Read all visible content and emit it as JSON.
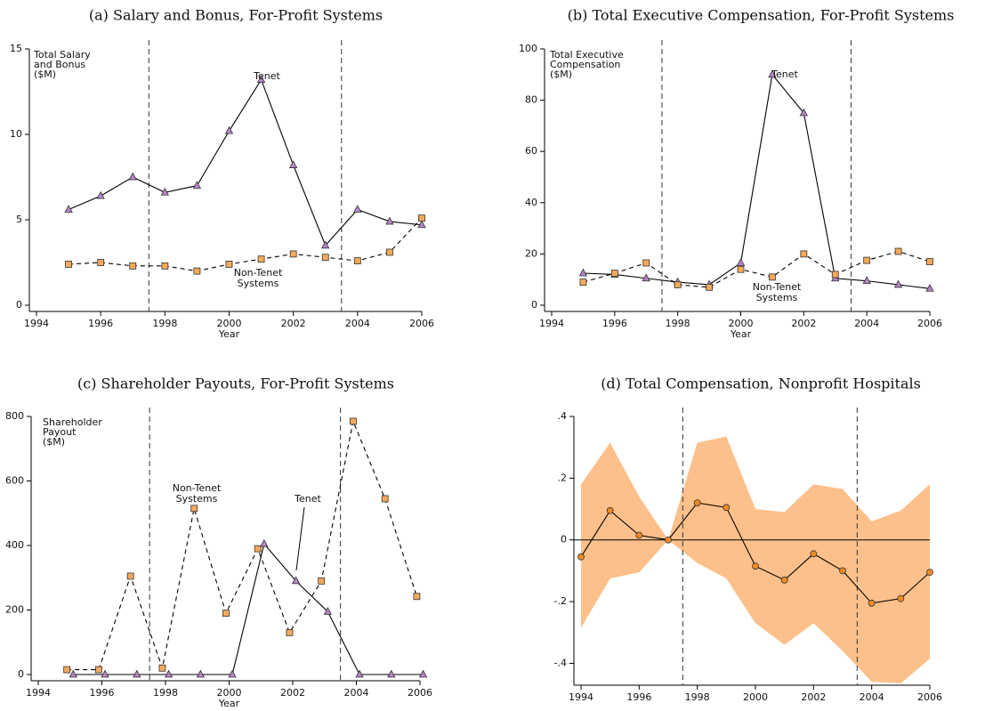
{
  "chart_data": [
    {
      "type": "line",
      "title": "(a) Salary and Bonus, For-Profit Systems",
      "xlabel": "Year",
      "ylabel": [
        "Total Salary",
        "and Bonus",
        "($M)"
      ],
      "x": [
        1995,
        1996,
        1997,
        1998,
        1999,
        2000,
        2001,
        2002,
        2003,
        2004,
        2005,
        2006
      ],
      "xlim": [
        1994,
        2006
      ],
      "xticks": [
        1994,
        1996,
        1998,
        2000,
        2002,
        2004,
        2006
      ],
      "ylim": [
        0,
        15
      ],
      "yticks": [
        0,
        5,
        10,
        15
      ],
      "vlines": [
        1997.5,
        2003.5
      ],
      "annotations": [
        [
          "Tenet"
        ],
        [
          "Non-Tenet",
          "Systems"
        ]
      ],
      "series": [
        {
          "marker": "triangle",
          "dash": false,
          "color": "#b784c9",
          "values": [
            5.6,
            6.4,
            7.5,
            6.6,
            7.0,
            10.2,
            13.2,
            8.2,
            3.5,
            5.6,
            4.9,
            4.7
          ]
        },
        {
          "marker": "square",
          "dash": true,
          "color": "#f5a95b",
          "values": [
            2.4,
            2.5,
            2.3,
            2.3,
            2.0,
            2.4,
            2.7,
            3.0,
            2.8,
            2.6,
            3.1,
            5.1
          ]
        }
      ]
    },
    {
      "type": "line",
      "title": "(b) Total Executive Compensation, For-Profit Systems",
      "xlabel": "Year",
      "ylabel": [
        "Total Executive",
        "Compensation",
        "($M)"
      ],
      "x": [
        1995,
        1996,
        1997,
        1998,
        1999,
        2000,
        2001,
        2002,
        2003,
        2004,
        2005,
        2006
      ],
      "xlim": [
        1994,
        2006
      ],
      "xticks": [
        1994,
        1996,
        1998,
        2000,
        2002,
        2004,
        2006
      ],
      "ylim": [
        0,
        100
      ],
      "yticks": [
        0,
        20,
        40,
        60,
        80,
        100
      ],
      "vlines": [
        1997.5,
        2003.5
      ],
      "annotations": [
        [
          "Tenet"
        ],
        [
          "Non-Tenet",
          "Systems"
        ]
      ],
      "series": [
        {
          "marker": "triangle",
          "dash": false,
          "color": "#b784c9",
          "values": [
            12.5,
            12,
            10.5,
            9,
            8,
            16.5,
            90,
            75,
            10.5,
            9.5,
            8,
            6.5
          ]
        },
        {
          "marker": "square",
          "dash": true,
          "color": "#f5a95b",
          "values": [
            9,
            12.5,
            16.5,
            8,
            7,
            14,
            11,
            20,
            12,
            17.5,
            21,
            17
          ]
        }
      ]
    },
    {
      "type": "line",
      "title": "(c) Shareholder Payouts, For-Profit Systems",
      "xlabel": "Year",
      "ylabel": [
        "Shareholder",
        "Payout",
        "($M)"
      ],
      "xlim": [
        1994,
        2006
      ],
      "xticks": [
        1994,
        1996,
        1998,
        2000,
        2002,
        2004,
        2006
      ],
      "ylim": [
        0,
        800
      ],
      "yticks": [
        0,
        200,
        400,
        600,
        800
      ],
      "vlines": [
        1997.5,
        2003.5
      ],
      "annotations": [
        [
          "Non-Tenet",
          "Systems"
        ],
        [
          "Tenet"
        ]
      ],
      "series": [
        {
          "marker": "square",
          "dash": true,
          "color": "#f5a95b",
          "x": [
            1994.9,
            1995.9,
            1996.9,
            1997.9,
            1998.9,
            1999.9,
            2000.9,
            2001.9,
            2002.9,
            2003.9,
            2004.9,
            2005.9
          ],
          "values": [
            15,
            15,
            305,
            20,
            515,
            190,
            390,
            130,
            290,
            785,
            545,
            242
          ]
        },
        {
          "marker": "triangle",
          "dash": false,
          "color": "#b784c9",
          "x": [
            1995.1,
            1996.1,
            1997.1,
            1998.1,
            1999.1,
            2000.1,
            2001.1,
            2002.1,
            2003.1,
            2004.1,
            2005.1,
            2006.1
          ],
          "values": [
            0,
            0,
            0,
            0,
            0,
            0,
            405,
            290,
            195,
            0,
            0,
            0
          ]
        }
      ]
    },
    {
      "type": "band",
      "title": "(d) Total Compensation, Nonprofit Hospitals",
      "x": [
        1994,
        1995,
        1996,
        1997,
        1998,
        1999,
        2000,
        2001,
        2002,
        2003,
        2004,
        2005,
        2006
      ],
      "xlim": [
        1994,
        2006
      ],
      "xticks": [
        1994,
        1996,
        1998,
        2000,
        2002,
        2004,
        2006
      ],
      "ylim": [
        -0.465,
        0.4
      ],
      "yticks": [
        {
          "value": -0.4,
          "label": "-.4"
        },
        {
          "value": -0.2,
          "label": "-.2"
        },
        0,
        {
          "value": 0.2,
          "label": ".2"
        },
        {
          "value": 0.4,
          "label": ".4"
        }
      ],
      "vlines": [
        1997.5,
        2003.5
      ],
      "hline": 0,
      "band": {
        "color": "#fdc08a",
        "upper": [
          0.18,
          0.315,
          0.14,
          0.0,
          0.315,
          0.335,
          0.1,
          0.09,
          0.18,
          0.165,
          0.06,
          0.095,
          0.18
        ],
        "lower": [
          -0.285,
          -0.125,
          -0.105,
          0.0,
          -0.075,
          -0.125,
          -0.27,
          -0.34,
          -0.27,
          -0.36,
          -0.46,
          -0.465,
          -0.385
        ]
      },
      "series": [
        {
          "marker": "circle",
          "dash": false,
          "color": "#f08a24",
          "values": [
            -0.055,
            0.095,
            0.015,
            0,
            0.12,
            0.105,
            -0.085,
            -0.13,
            -0.045,
            -0.1,
            -0.205,
            -0.19,
            -0.105
          ]
        }
      ]
    }
  ]
}
